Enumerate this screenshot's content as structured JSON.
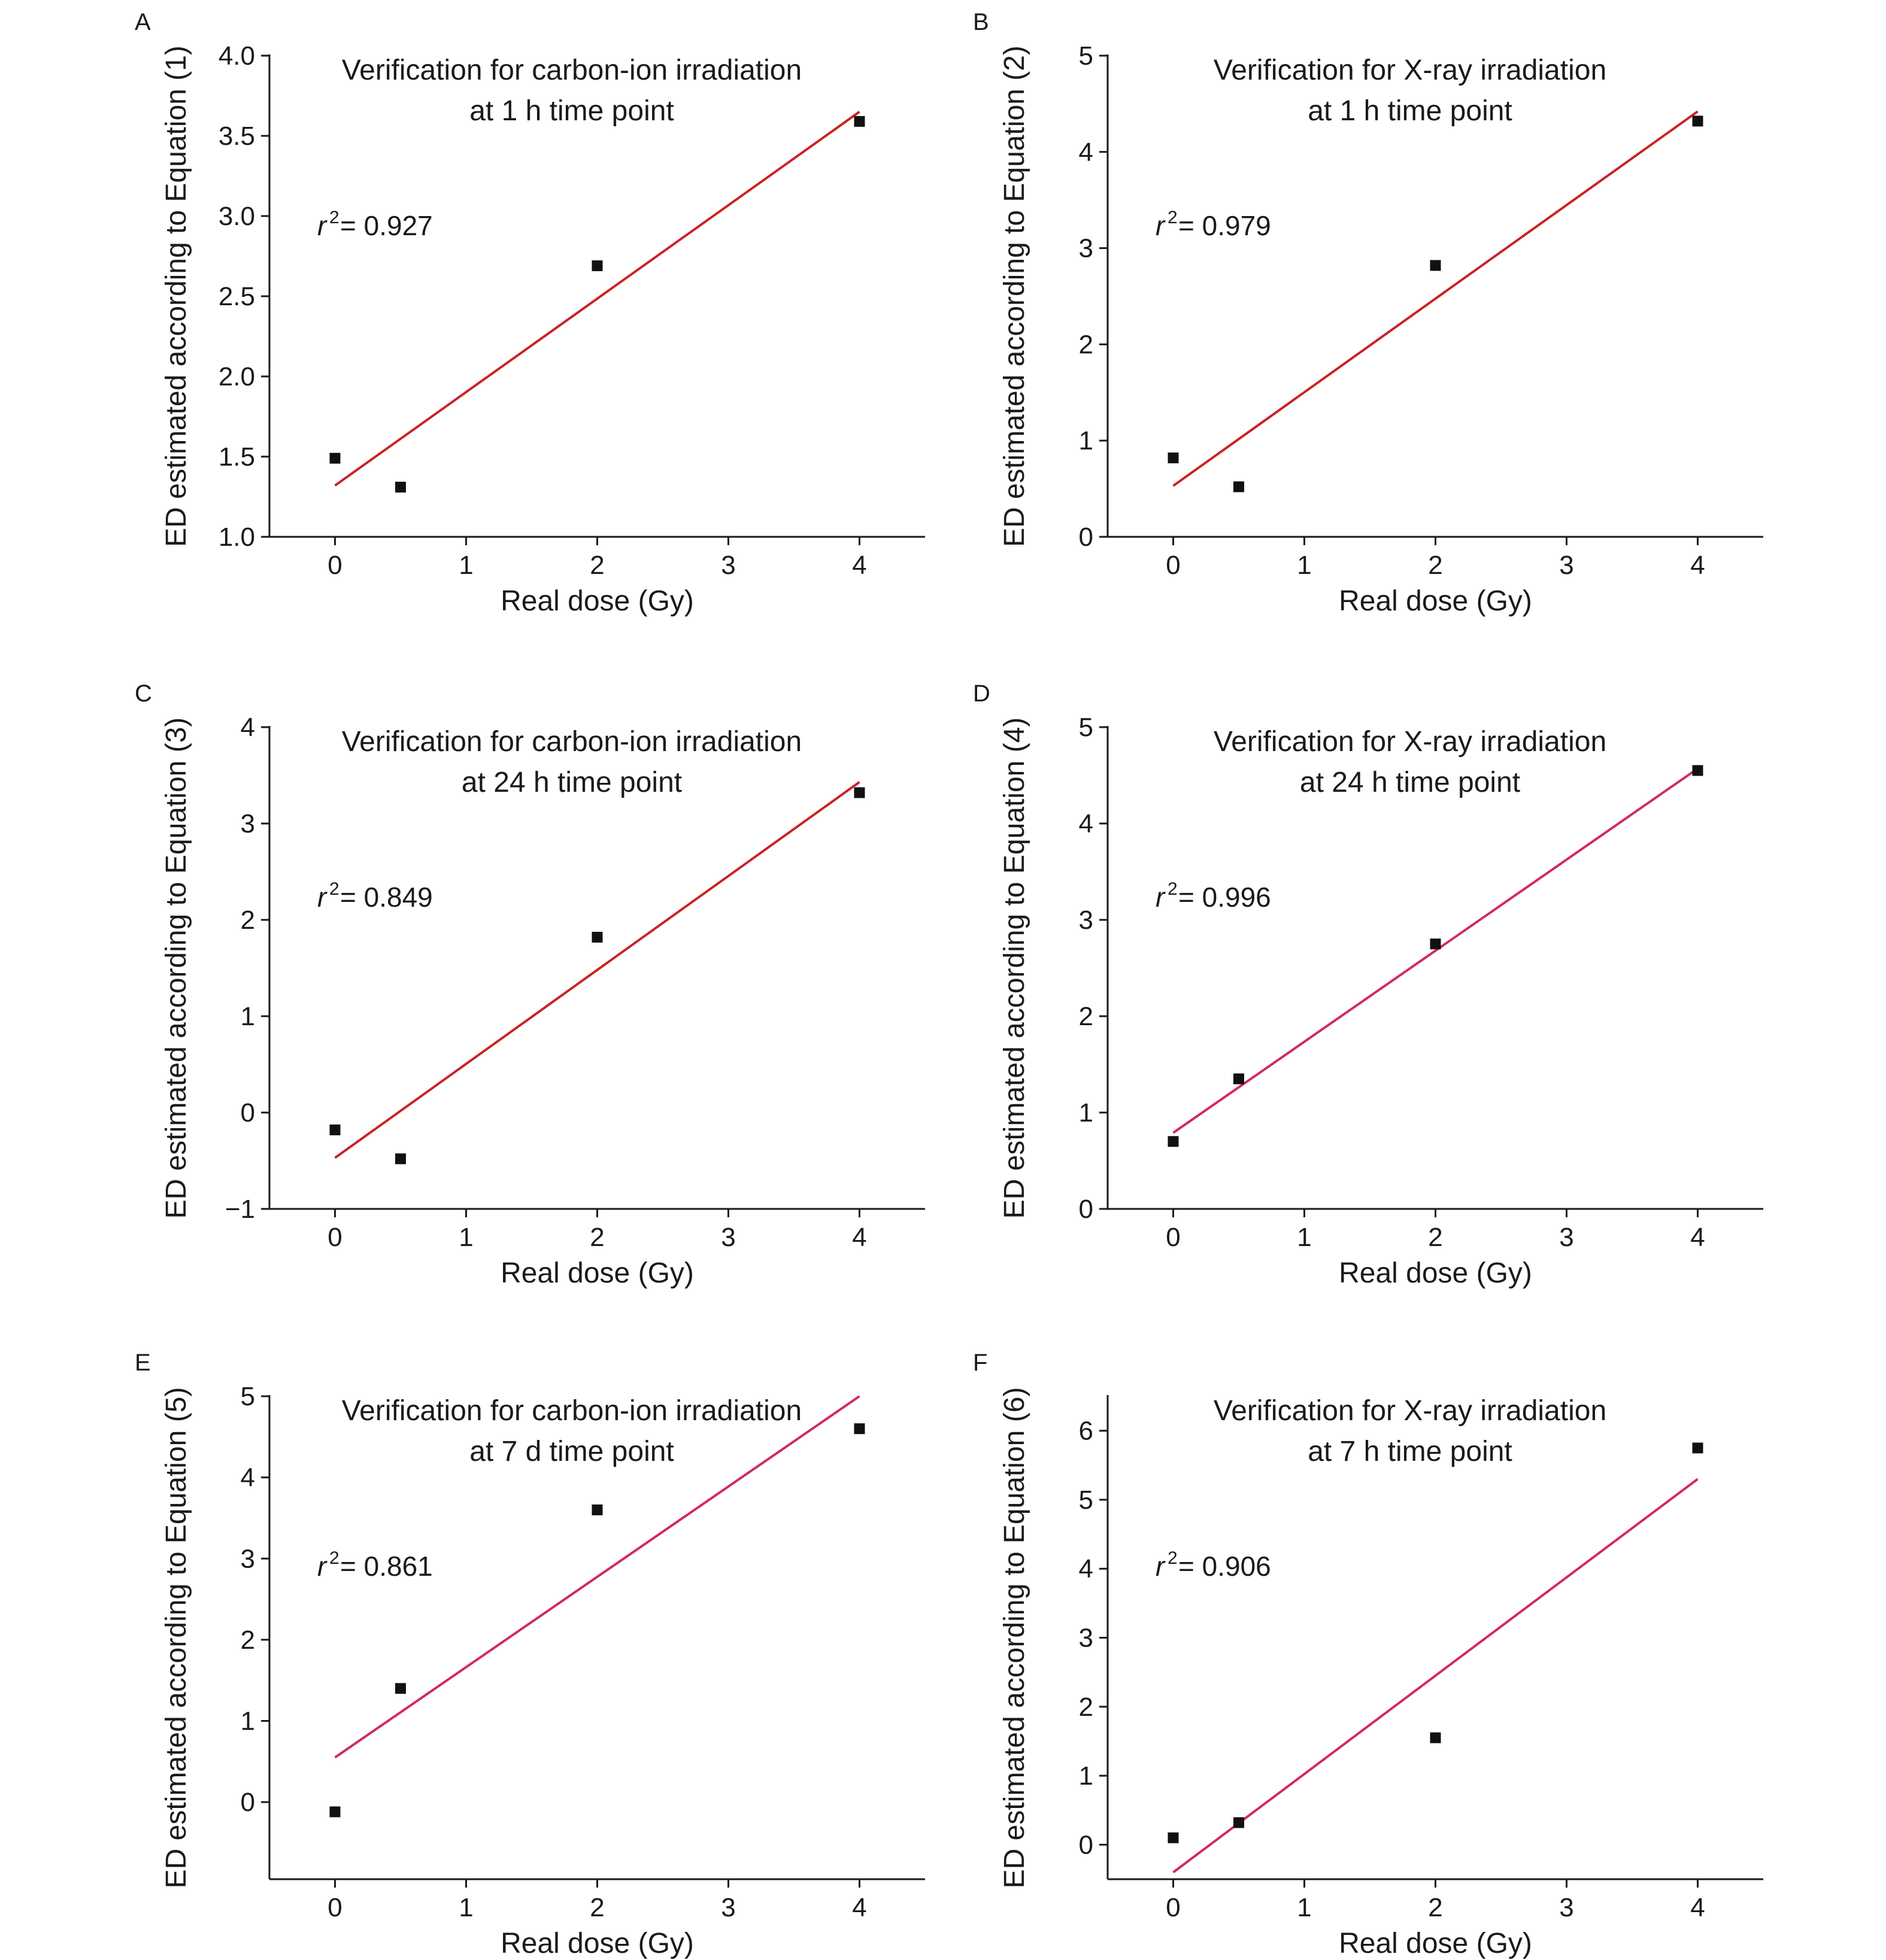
{
  "figure": {
    "xlabel": "Real dose (Gy)"
  },
  "chart_data": [
    {
      "panel": "A",
      "type": "scatter",
      "title_lines": [
        "Verification for carbon-ion irradiation",
        "at 1 h time point"
      ],
      "xlabel": "Real dose (Gy)",
      "ylabel": "ED estimated according to Equation (1)",
      "xlim": [
        -0.5,
        4.5
      ],
      "ylim": [
        1.0,
        4.0
      ],
      "xticks": [
        0,
        1,
        2,
        3,
        4
      ],
      "xtick_labels": [
        "0",
        "1",
        "2",
        "3",
        "4"
      ],
      "yticks": [
        1.0,
        1.5,
        2.0,
        2.5,
        3.0,
        3.5,
        4.0
      ],
      "ytick_labels": [
        "1.0",
        "1.5",
        "2.0",
        "2.5",
        "3.0",
        "3.5",
        "4.0"
      ],
      "points": {
        "x": [
          0,
          0.5,
          2,
          4
        ],
        "y": [
          1.49,
          1.31,
          2.69,
          3.59
        ]
      },
      "fit_line": {
        "x": [
          0,
          4
        ],
        "y": [
          1.32,
          3.65
        ],
        "color": "#cc2222"
      },
      "r2": {
        "symbol": "r",
        "sup": "2",
        "text": " = 0.927"
      },
      "grid": false,
      "legend": "none"
    },
    {
      "panel": "B",
      "type": "scatter",
      "title_lines": [
        "Verification for X-ray irradiation",
        "at 1 h time point"
      ],
      "xlabel": "Real dose (Gy)",
      "ylabel": "ED estimated according to Equation (2)",
      "xlim": [
        -0.5,
        4.5
      ],
      "ylim": [
        0,
        5
      ],
      "xticks": [
        0,
        1,
        2,
        3,
        4
      ],
      "xtick_labels": [
        "0",
        "1",
        "2",
        "3",
        "4"
      ],
      "yticks": [
        0,
        1,
        2,
        3,
        4,
        5
      ],
      "ytick_labels": [
        "0",
        "1",
        "2",
        "3",
        "4",
        "5"
      ],
      "points": {
        "x": [
          0,
          0.5,
          2,
          4
        ],
        "y": [
          0.82,
          0.52,
          2.82,
          4.32
        ]
      },
      "fit_line": {
        "x": [
          0,
          4
        ],
        "y": [
          0.53,
          4.42
        ],
        "color": "#cc2222"
      },
      "r2": {
        "symbol": "r",
        "sup": "2",
        "text": " = 0.979"
      },
      "grid": false,
      "legend": "none"
    },
    {
      "panel": "C",
      "type": "scatter",
      "title_lines": [
        "Verification for carbon-ion irradiation",
        "at 24 h time point"
      ],
      "xlabel": "Real dose (Gy)",
      "ylabel": "ED estimated according to Equation (3)",
      "xlim": [
        -0.5,
        4.5
      ],
      "ylim": [
        -1,
        4
      ],
      "xticks": [
        0,
        1,
        2,
        3,
        4
      ],
      "xtick_labels": [
        "0",
        "1",
        "2",
        "3",
        "4"
      ],
      "yticks": [
        -1,
        0,
        1,
        2,
        3,
        4
      ],
      "ytick_labels": [
        "−1",
        "0",
        "1",
        "2",
        "3",
        "4"
      ],
      "points": {
        "x": [
          0,
          0.5,
          2,
          4
        ],
        "y": [
          -0.18,
          -0.48,
          1.82,
          3.32
        ]
      },
      "fit_line": {
        "x": [
          0,
          4
        ],
        "y": [
          -0.47,
          3.43
        ],
        "color": "#cc2222"
      },
      "r2": {
        "symbol": "r",
        "sup": "2",
        "text": " = 0.849"
      },
      "grid": false,
      "legend": "none"
    },
    {
      "panel": "D",
      "type": "scatter",
      "title_lines": [
        "Verification for X-ray irradiation",
        "at 24 h time point"
      ],
      "xlabel": "Real dose (Gy)",
      "ylabel": "ED estimated according to Equation (4)",
      "xlim": [
        -0.5,
        4.5
      ],
      "ylim": [
        0,
        5
      ],
      "xticks": [
        0,
        1,
        2,
        3,
        4
      ],
      "xtick_labels": [
        "0",
        "1",
        "2",
        "3",
        "4"
      ],
      "yticks": [
        0,
        1,
        2,
        3,
        4,
        5
      ],
      "ytick_labels": [
        "0",
        "1",
        "2",
        "3",
        "4",
        "5"
      ],
      "points": {
        "x": [
          0,
          0.5,
          2,
          4
        ],
        "y": [
          0.7,
          1.35,
          2.75,
          4.55
        ]
      },
      "fit_line": {
        "x": [
          0,
          4
        ],
        "y": [
          0.79,
          4.57
        ],
        "color": "#d22a5a"
      },
      "r2": {
        "symbol": "r",
        "sup": "2",
        "text": " = 0.996"
      },
      "grid": false,
      "legend": "none"
    },
    {
      "panel": "E",
      "type": "scatter",
      "title_lines": [
        "Verification for carbon-ion irradiation",
        "at 7 d time point"
      ],
      "xlabel": "Real dose (Gy)",
      "ylabel": "ED estimated according to Equation (5)",
      "xlim": [
        -0.5,
        4.5
      ],
      "ylim": [
        -0.95,
        5
      ],
      "xticks": [
        0,
        1,
        2,
        3,
        4
      ],
      "xtick_labels": [
        "0",
        "1",
        "2",
        "3",
        "4"
      ],
      "yticks": [
        0,
        1,
        2,
        3,
        4,
        5
      ],
      "ytick_labels": [
        "0",
        "1",
        "2",
        "3",
        "4",
        "5"
      ],
      "points": {
        "x": [
          0,
          0.5,
          2,
          4
        ],
        "y": [
          -0.12,
          1.4,
          3.6,
          4.6
        ]
      },
      "fit_line": {
        "x": [
          0,
          4
        ],
        "y": [
          0.55,
          5.0
        ],
        "color": "#d22a5a"
      },
      "r2": {
        "symbol": "r",
        "sup": "2",
        "text": " = 0.861"
      },
      "grid": false,
      "legend": "none"
    },
    {
      "panel": "F",
      "type": "scatter",
      "title_lines": [
        "Verification for X-ray irradiation",
        "at 7 h time point"
      ],
      "xlabel": "Real dose (Gy)",
      "ylabel": "ED estimated according to Equation (6)",
      "xlim": [
        -0.5,
        4.5
      ],
      "ylim": [
        -0.5,
        6.5
      ],
      "xticks": [
        0,
        1,
        2,
        3,
        4
      ],
      "xtick_labels": [
        "0",
        "1",
        "2",
        "3",
        "4"
      ],
      "yticks": [
        0,
        1,
        2,
        3,
        4,
        5,
        6
      ],
      "ytick_labels": [
        "0",
        "1",
        "2",
        "3",
        "4",
        "5",
        "6"
      ],
      "points": {
        "x": [
          0,
          0.5,
          2,
          4
        ],
        "y": [
          0.1,
          0.32,
          1.55,
          5.75
        ]
      },
      "fit_line": {
        "x": [
          0,
          4
        ],
        "y": [
          -0.4,
          5.3
        ],
        "color": "#d22a5a"
      },
      "r2": {
        "symbol": "r",
        "sup": "2",
        "text": " = 0.906"
      },
      "grid": false,
      "legend": "none"
    }
  ]
}
